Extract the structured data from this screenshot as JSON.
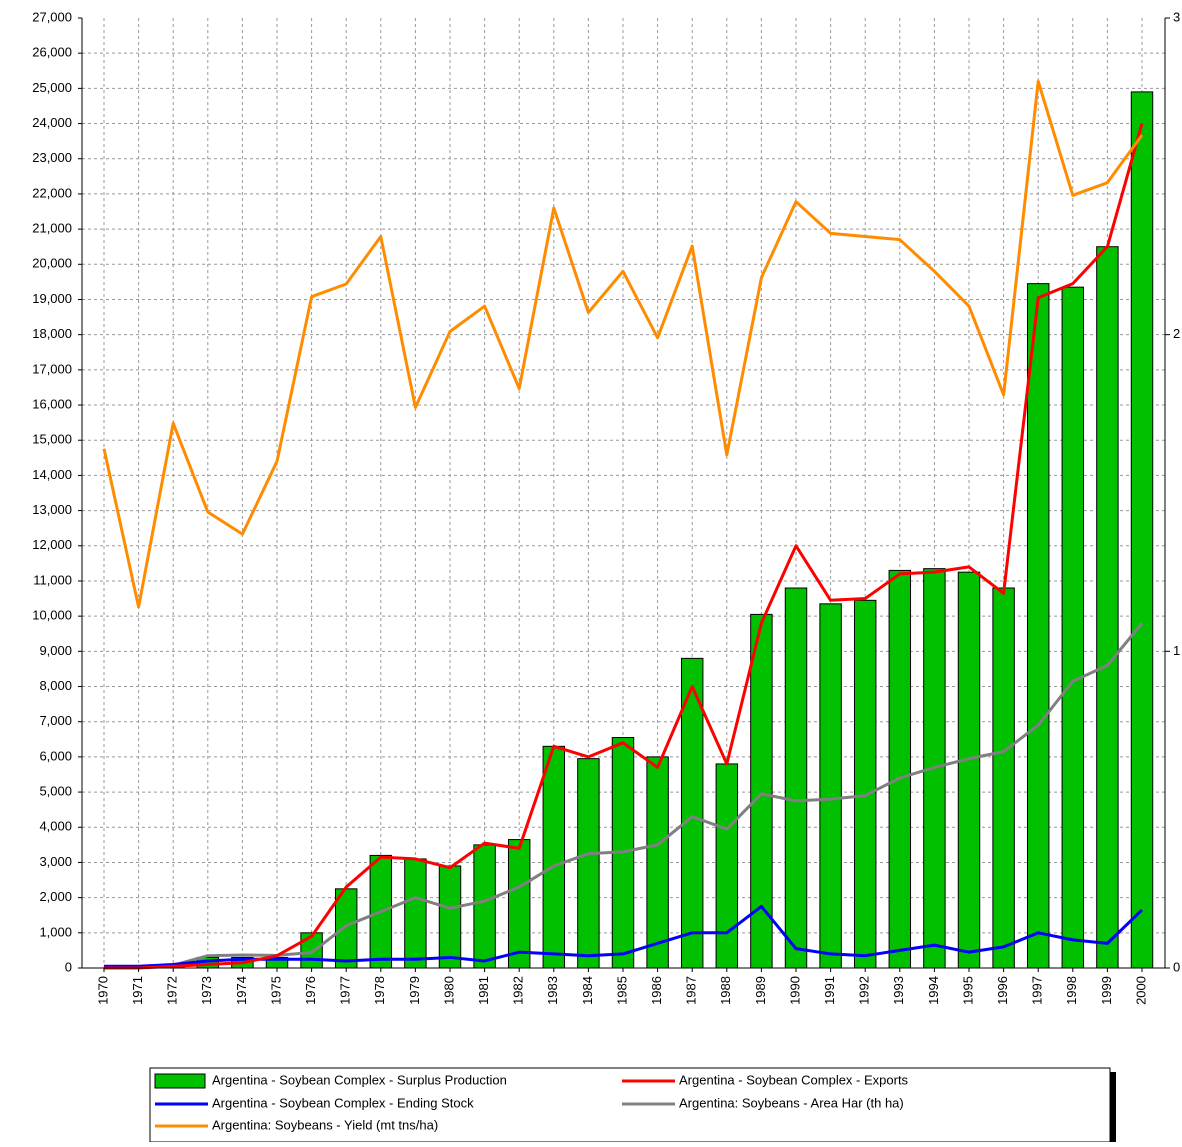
{
  "chart_data": {
    "type": "bar-line",
    "categories": [
      "1970",
      "1971",
      "1972",
      "1973",
      "1974",
      "1975",
      "1976",
      "1977",
      "1978",
      "1979",
      "1980",
      "1981",
      "1982",
      "1983",
      "1984",
      "1985",
      "1986",
      "1987",
      "1988",
      "1989",
      "1990",
      "1991",
      "1992",
      "1993",
      "1994",
      "1995",
      "1996",
      "1997",
      "1998",
      "1999",
      "2000"
    ],
    "series": [
      {
        "name": "Argentina - Soybean Complex - Surplus Production",
        "type": "bar",
        "color": "#00c000",
        "values": [
          0,
          0,
          50,
          300,
          300,
          300,
          1000,
          2250,
          3200,
          3100,
          2900,
          3500,
          3650,
          6300,
          5950,
          6550,
          6000,
          8800,
          5800,
          10050,
          10800,
          10350,
          10450,
          11300,
          11350,
          11250,
          10800,
          19450,
          19350,
          20500,
          24900
        ]
      },
      {
        "name": "Argentina - Soybean Complex - Exports",
        "type": "line",
        "color": "#ff0000",
        "values": [
          0,
          0,
          50,
          100,
          150,
          350,
          900,
          2300,
          3150,
          3100,
          2850,
          3550,
          3400,
          6300,
          6000,
          6400,
          5700,
          8000,
          5800,
          9800,
          12000,
          10450,
          10500,
          11200,
          11250,
          11400,
          10650,
          19050,
          19450,
          20500,
          24000
        ]
      },
      {
        "name": "Argentina - Soybean Complex - Ending Stock",
        "type": "line",
        "color": "#0000ff",
        "values": [
          50,
          50,
          100,
          200,
          250,
          250,
          250,
          200,
          250,
          250,
          300,
          200,
          450,
          400,
          350,
          400,
          700,
          1000,
          1000,
          1750,
          550,
          400,
          350,
          500,
          650,
          450,
          600,
          1000,
          800,
          700,
          1650
        ]
      },
      {
        "name": "Argentina: Soybeans - Area Har (th ha)",
        "type": "line",
        "color": "#808080",
        "values": [
          30,
          40,
          80,
          350,
          370,
          360,
          440,
          1200,
          1600,
          2000,
          1700,
          1900,
          2300,
          2900,
          3250,
          3300,
          3500,
          4300,
          3950,
          4950,
          4750,
          4800,
          4900,
          5400,
          5700,
          5950,
          6150,
          6900,
          8150,
          8600,
          9800
        ]
      },
      {
        "name": "Argentina: Soybeans - Yield (mt tns/ha)",
        "type": "line",
        "color": "#ff8c00",
        "axis": "y2",
        "values": [
          1.64,
          1.14,
          1.72,
          1.44,
          1.37,
          1.6,
          2.12,
          2.16,
          2.31,
          1.77,
          2.01,
          2.09,
          1.83,
          2.4,
          2.07,
          2.2,
          1.99,
          2.28,
          1.62,
          2.18,
          2.42,
          2.32,
          2.31,
          2.3,
          2.2,
          2.09,
          1.81,
          2.8,
          2.44,
          2.48,
          2.63
        ]
      }
    ],
    "ylim": [
      0,
      27000
    ],
    "yticks": [
      0,
      {
        "value": 1000,
        "label": "1,000"
      },
      {
        "value": 2000,
        "label": "2,000"
      },
      {
        "value": 3000,
        "label": "3,000"
      },
      {
        "value": 4000,
        "label": "4,000"
      },
      {
        "value": 5000,
        "label": "5,000"
      },
      {
        "value": 6000,
        "label": "6,000"
      },
      {
        "value": 7000,
        "label": "7,000"
      },
      {
        "value": 8000,
        "label": "8,000"
      },
      {
        "value": 9000,
        "label": "9,000"
      },
      {
        "value": 10000,
        "label": "10,000"
      },
      {
        "value": 11000,
        "label": "11,000"
      },
      {
        "value": 12000,
        "label": "12,000"
      },
      {
        "value": 13000,
        "label": "13,000"
      },
      {
        "value": 14000,
        "label": "14,000"
      },
      {
        "value": 15000,
        "label": "15,000"
      },
      {
        "value": 16000,
        "label": "16,000"
      },
      {
        "value": 17000,
        "label": "17,000"
      },
      {
        "value": 18000,
        "label": "18,000"
      },
      {
        "value": 19000,
        "label": "19,000"
      },
      {
        "value": 20000,
        "label": "20,000"
      },
      {
        "value": 21000,
        "label": "21,000"
      },
      {
        "value": 22000,
        "label": "22,000"
      },
      {
        "value": 23000,
        "label": "23,000"
      },
      {
        "value": 24000,
        "label": "24,000"
      },
      {
        "value": 25000,
        "label": "25,000"
      },
      {
        "value": 26000,
        "label": "26,000"
      },
      {
        "value": 27000,
        "label": "27,000"
      }
    ],
    "y2lim": [
      0,
      3
    ],
    "y2ticks": [
      0,
      1,
      2,
      3
    ],
    "grid": true
  }
}
